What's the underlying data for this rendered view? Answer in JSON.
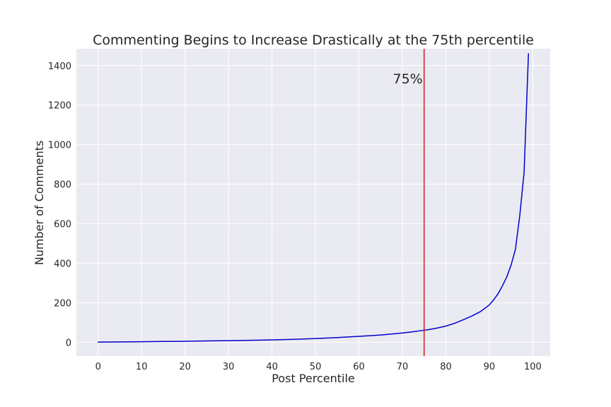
{
  "chart_data": {
    "type": "line",
    "title": "Commenting Begins to Increase Drastically at the 75th percentile",
    "xlabel": "Post Percentile",
    "ylabel": "Number of Comments",
    "xlim": [
      -5,
      104
    ],
    "ylim": [
      -70,
      1485
    ],
    "xticks": [
      0,
      10,
      20,
      30,
      40,
      50,
      60,
      70,
      80,
      90,
      100
    ],
    "yticks": [
      0,
      200,
      400,
      600,
      800,
      1000,
      1200,
      1400
    ],
    "grid": true,
    "series": [
      {
        "color": "#0000cc",
        "x": [
          0,
          5,
          10,
          15,
          20,
          25,
          30,
          35,
          40,
          45,
          50,
          55,
          60,
          65,
          70,
          72,
          74,
          76,
          78,
          80,
          82,
          84,
          86,
          88,
          90,
          91,
          92,
          93,
          94,
          95,
          96,
          97,
          98,
          99
        ],
        "y": [
          1,
          2,
          3,
          4,
          5,
          7,
          8,
          10,
          12,
          15,
          19,
          24,
          30,
          37,
          47,
          52,
          58,
          64,
          72,
          82,
          96,
          114,
          133,
          156,
          189,
          215,
          245,
          285,
          330,
          390,
          470,
          640,
          860,
          1460
        ]
      }
    ],
    "vline": {
      "x": 75,
      "color": "#d62728",
      "label": "75%"
    }
  }
}
